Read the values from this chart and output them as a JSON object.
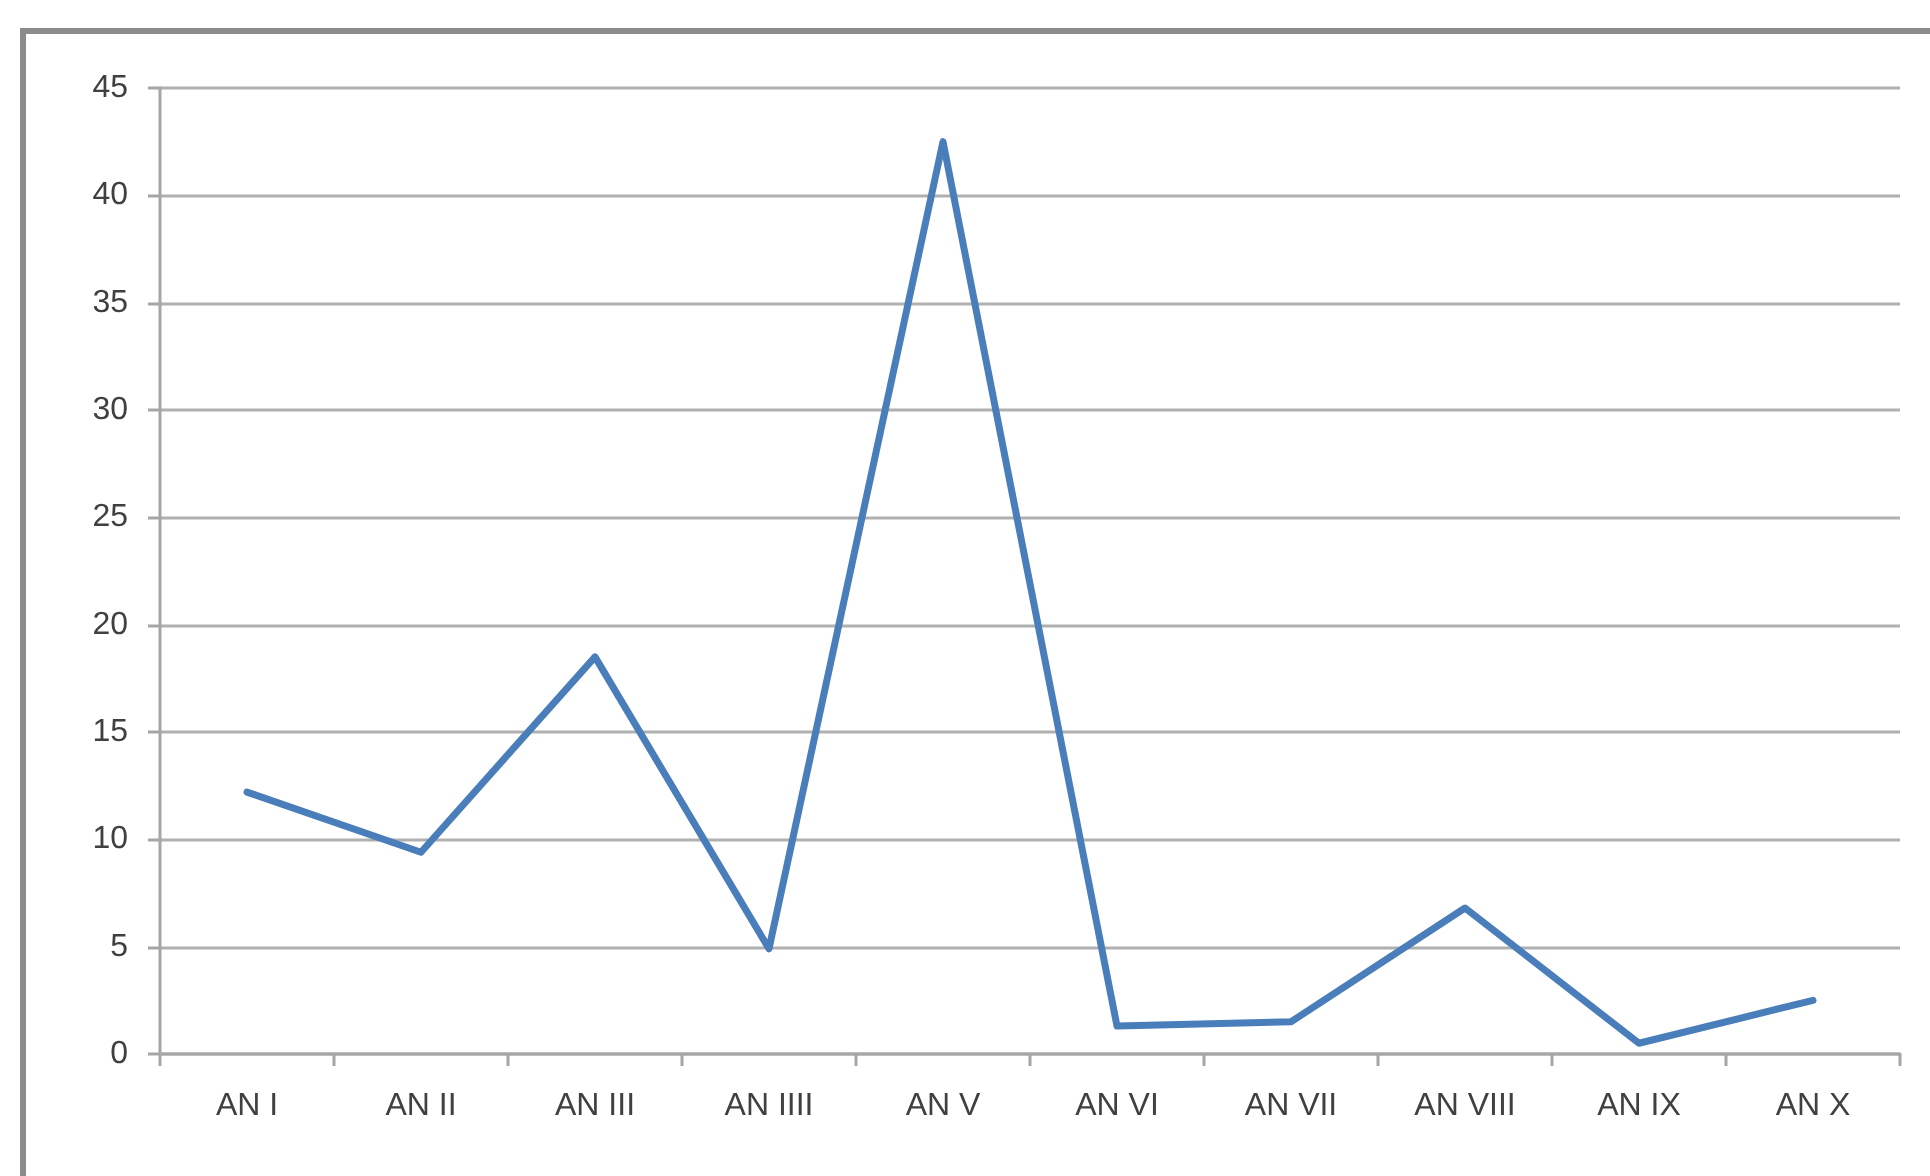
{
  "chart_data": {
    "type": "line",
    "categories": [
      "AN I",
      "AN II",
      "AN III",
      "AN IIII",
      "AN V",
      "AN VI",
      "AN VII",
      "AN VIII",
      "AN IX",
      "AN X"
    ],
    "series": [
      {
        "color": "#4a7ebb",
        "values": [
          12.2,
          9.4,
          18.5,
          4.9,
          42.5,
          1.3,
          1.5,
          6.8,
          0.5,
          2.5
        ]
      }
    ],
    "ylim": [
      0,
      45
    ],
    "yticks": [
      0,
      5,
      10,
      15,
      20,
      25,
      30,
      35,
      40,
      45
    ],
    "grid": "y",
    "marker": "none"
  }
}
